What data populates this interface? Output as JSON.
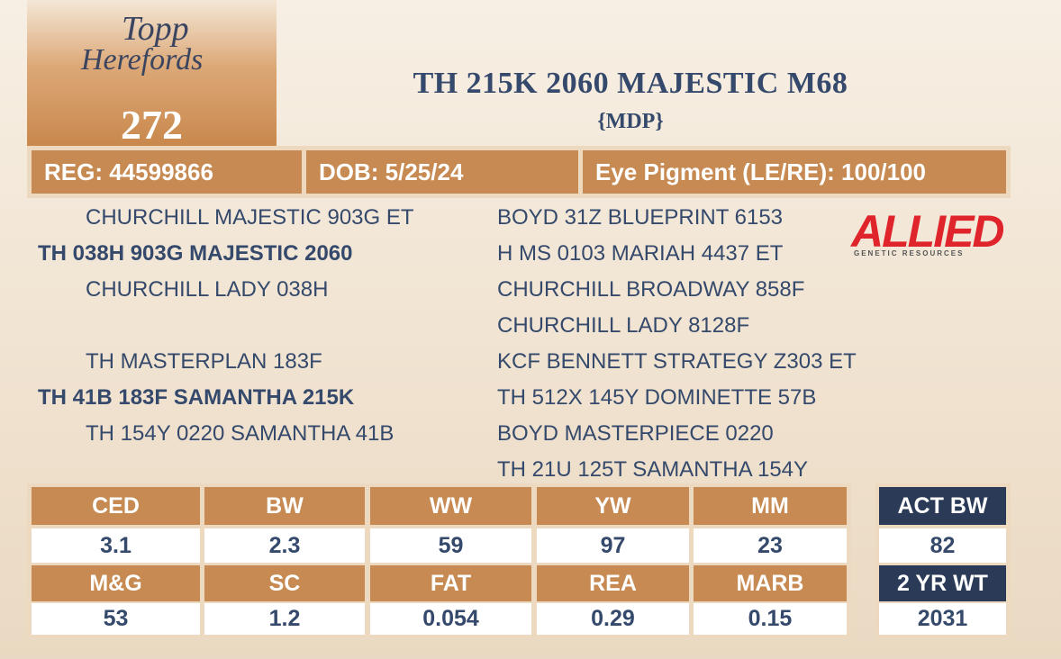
{
  "header": {
    "logo_line1": "Topp",
    "logo_line2": "Herefords",
    "lot": "272",
    "title": "TH 215K 2060 MAJESTIC M68",
    "subtitle": "{MDP}"
  },
  "info": [
    "REG: 44599866",
    "DOB: 5/25/24",
    "Eye Pigment (LE/RE): 100/100"
  ],
  "pedigree": {
    "sire": {
      "sire": "CHURCHILL MAJESTIC 903G ET",
      "name": "TH 038H 903G MAJESTIC 2060",
      "dam": "CHURCHILL LADY 038H"
    },
    "dam": {
      "sire": "TH MASTERPLAN 183F",
      "name": "TH 41B 183F SAMANTHA 215K",
      "dam": "TH 154Y 0220 SAMANTHA 41B"
    },
    "grandparents": [
      "BOYD 31Z BLUEPRINT 6153",
      "H MS 0103 MARIAH 4437 ET",
      "CHURCHILL BROADWAY 858F",
      "CHURCHILL LADY 8128F",
      "KCF BENNETT STRATEGY Z303 ET",
      "TH 512X 145Y DOMINETTE 57B",
      "BOYD MASTERPIECE 0220",
      "TH 21U 125T SAMANTHA 154Y"
    ]
  },
  "sponsor": {
    "name": "ALLIED",
    "tagline": "GENETIC RESOURCES"
  },
  "epd": [
    {
      "headers": [
        "CED",
        "BW",
        "WW",
        "YW",
        "MM"
      ],
      "values": [
        "3.1",
        "2.3",
        "59",
        "97",
        "23"
      ]
    },
    {
      "headers": [
        "M&G",
        "SC",
        "FAT",
        "REA",
        "MARB"
      ],
      "values": [
        "53",
        "1.2",
        "0.054",
        "0.29",
        "0.15"
      ]
    }
  ],
  "actual": [
    {
      "header": "ACT BW",
      "value": "82"
    },
    {
      "header": "2 YR WT",
      "value": "2031"
    }
  ]
}
